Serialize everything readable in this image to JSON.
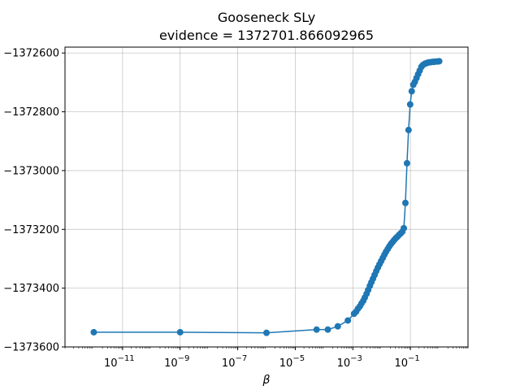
{
  "chart_data": {
    "type": "line",
    "title": "Gooseneck SLy",
    "subtitle": "evidence = 1372701.866092965",
    "xlabel": "β",
    "ylabel": "",
    "xscale": "log",
    "xlim": [
      1e-13,
      10
    ],
    "ylim": [
      -1373600,
      -1372580
    ],
    "grid": true,
    "color": "#1f77b4",
    "x_ticks": [
      {
        "value": 1e-11,
        "base": "10",
        "exp": "−11"
      },
      {
        "value": 1e-09,
        "base": "10",
        "exp": "−9"
      },
      {
        "value": 1e-07,
        "base": "10",
        "exp": "−7"
      },
      {
        "value": 1e-05,
        "base": "10",
        "exp": "−5"
      },
      {
        "value": 0.001,
        "base": "10",
        "exp": "−3"
      },
      {
        "value": 0.1,
        "base": "10",
        "exp": "−1"
      }
    ],
    "y_ticks": [
      {
        "value": -1372600,
        "label": "−1372600"
      },
      {
        "value": -1372800,
        "label": "−1372800"
      },
      {
        "value": -1373000,
        "label": "−1373000"
      },
      {
        "value": -1373200,
        "label": "−1373200"
      },
      {
        "value": -1373400,
        "label": "−1373400"
      },
      {
        "value": -1373600,
        "label": "−1373600"
      }
    ],
    "series": [
      {
        "x": [
          1e-12,
          1e-09,
          1e-06,
          5.5e-05,
          0.000135,
          0.0003,
          0.00067,
          0.0011,
          0.0013,
          0.0015,
          0.00175,
          0.002,
          0.0023,
          0.0026,
          0.003,
          0.0034,
          0.0039,
          0.0044,
          0.005,
          0.0057,
          0.0065,
          0.0074,
          0.0084,
          0.0096,
          0.011,
          0.0125,
          0.0142,
          0.0162,
          0.0184,
          0.021,
          0.024,
          0.0273,
          0.031,
          0.0353,
          0.04,
          0.0455,
          0.052,
          0.059,
          0.067,
          0.076,
          0.086,
          0.098,
          0.111,
          0.126,
          0.143,
          0.163,
          0.185,
          0.21,
          0.24,
          0.27,
          0.31,
          0.35,
          0.4,
          0.45,
          0.52,
          0.59,
          0.67,
          0.76,
          0.87,
          1.0
        ],
        "y": [
          -1373550,
          -1373550,
          -1373552,
          -1373541,
          -1373541,
          -1373530,
          -1373510,
          -1373487,
          -1373480,
          -1373470,
          -1373462,
          -1373452,
          -1373443,
          -1373432,
          -1373419,
          -1373406,
          -1373392,
          -1373380,
          -1373368,
          -1373355,
          -1373342,
          -1373330,
          -1373319,
          -1373308,
          -1373297,
          -1373286,
          -1373276,
          -1373267,
          -1373258,
          -1373250,
          -1373243,
          -1373236,
          -1373230,
          -1373225,
          -1373219,
          -1373214,
          -1373208,
          -1373196,
          -1373110,
          -1372975,
          -1372862,
          -1372775,
          -1372730,
          -1372708,
          -1372698,
          -1372685,
          -1372672,
          -1372660,
          -1372647,
          -1372641,
          -1372637,
          -1372635,
          -1372633,
          -1372632,
          -1372631,
          -1372630,
          -1372630,
          -1372629,
          -1372629,
          -1372628
        ]
      }
    ]
  }
}
